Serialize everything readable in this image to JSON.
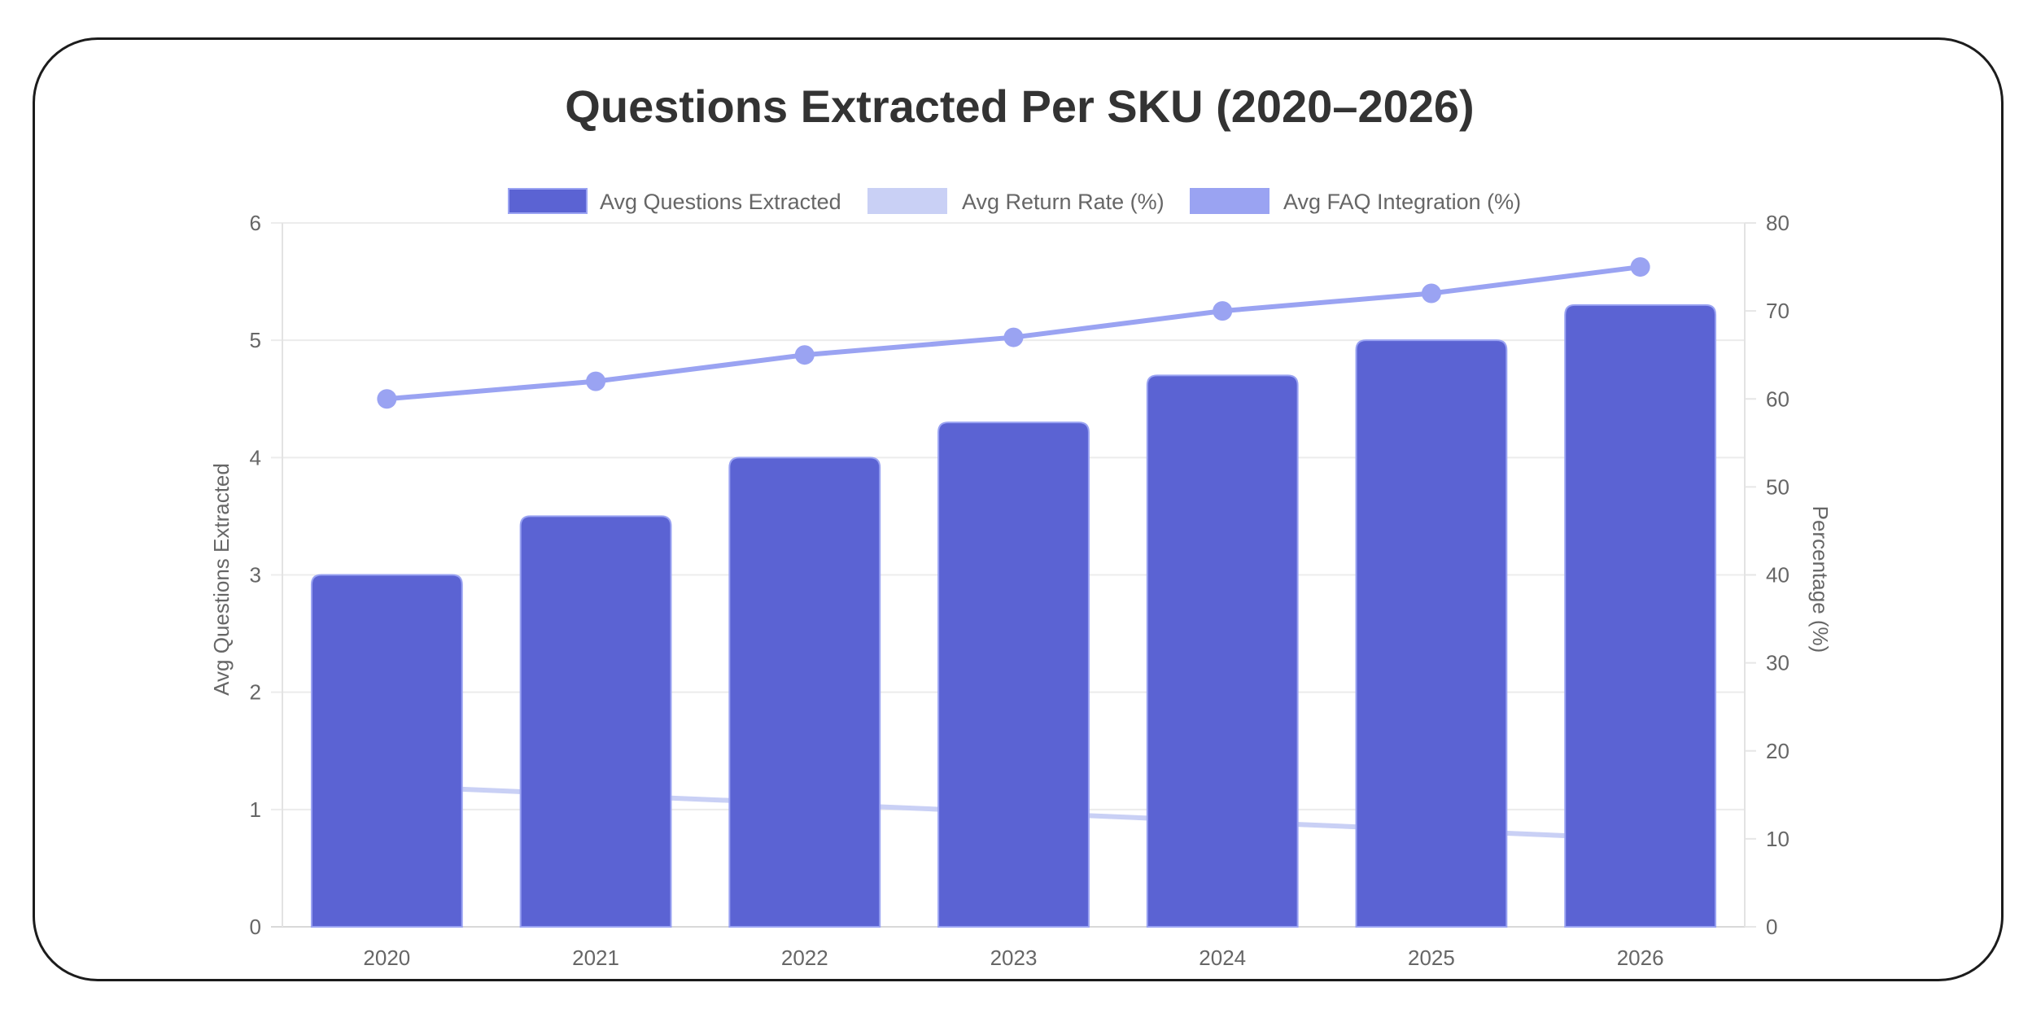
{
  "chart_data": {
    "type": "bar",
    "title": "Questions Extracted Per SKU (2020–2026)",
    "categories": [
      "2020",
      "2021",
      "2022",
      "2023",
      "2024",
      "2025",
      "2026"
    ],
    "series": [
      {
        "name": "Avg Questions Extracted",
        "type": "bar",
        "axis": "left",
        "color": "#5B63D3",
        "border_color": "#9AA3F2",
        "values": [
          3.0,
          3.5,
          4.0,
          4.3,
          4.7,
          5.0,
          5.3
        ]
      },
      {
        "name": "Avg Return Rate (%)",
        "type": "line",
        "axis": "right",
        "color": "#C9D0F5",
        "values": [
          16,
          15,
          14,
          13,
          12,
          11,
          10
        ]
      },
      {
        "name": "Avg FAQ Integration (%)",
        "type": "line",
        "axis": "right",
        "color": "#9AA3F2",
        "values": [
          60,
          62,
          65,
          67,
          70,
          72,
          75
        ]
      }
    ],
    "xlabel": "",
    "ylabel": "Avg Questions Extracted",
    "ylabel_right": "Percentage (%)",
    "ylim": [
      0,
      6
    ],
    "ylim_right": [
      0,
      80
    ],
    "yticks": [
      0,
      1,
      2,
      3,
      4,
      5,
      6
    ],
    "yticks_right": [
      0,
      10,
      20,
      30,
      40,
      50,
      60,
      70,
      80
    ],
    "grid": true,
    "legend_position": "top"
  }
}
